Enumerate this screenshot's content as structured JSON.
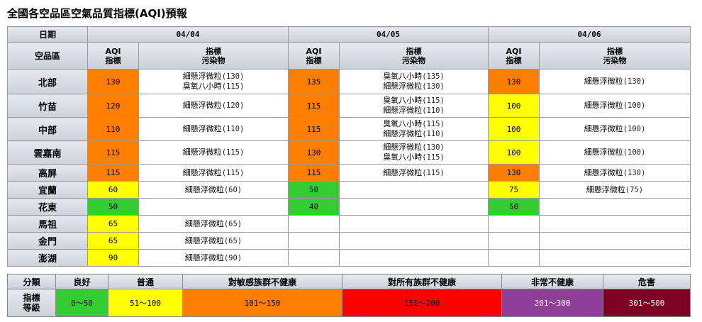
{
  "title": "全國各空品區空氣品質指標(AQI)預報",
  "header": {
    "date_label": "日期",
    "region_label": "空品區",
    "aqi_label_1": "AQI",
    "aqi_label_2": "指標",
    "pol_label_1": "指標",
    "pol_label_2": "污染物",
    "dates": [
      "04/04",
      "04/05",
      "04/06"
    ]
  },
  "colors": {
    "good": "#33cc33",
    "moderate": "#ffff00",
    "sensitive": "#ff7e00",
    "unhealthy": "#ff0000",
    "very_unhealthy": "#8f3f97",
    "hazardous": "#7e0023"
  },
  "rows": [
    {
      "region": "北部",
      "days": [
        {
          "aqi": "130",
          "level": "sensitive",
          "pol": [
            [
              "細懸浮微粒",
              "(130)"
            ],
            [
              "臭氧八小時",
              "(115)"
            ]
          ]
        },
        {
          "aqi": "135",
          "level": "sensitive",
          "pol": [
            [
              "臭氧八小時",
              "(135)"
            ],
            [
              "細懸浮微粒",
              "(130)"
            ]
          ]
        },
        {
          "aqi": "130",
          "level": "sensitive",
          "pol": [
            [
              "細懸浮微粒",
              "(130)"
            ]
          ]
        }
      ]
    },
    {
      "region": "竹苗",
      "days": [
        {
          "aqi": "120",
          "level": "sensitive",
          "pol": [
            [
              "細懸浮微粒",
              "(120)"
            ]
          ]
        },
        {
          "aqi": "115",
          "level": "sensitive",
          "pol": [
            [
              "臭氧八小時",
              "(115)"
            ],
            [
              "細懸浮微粒",
              "(110)"
            ]
          ]
        },
        {
          "aqi": "100",
          "level": "moderate",
          "pol": [
            [
              "細懸浮微粒",
              "(100)"
            ]
          ]
        }
      ]
    },
    {
      "region": "中部",
      "days": [
        {
          "aqi": "110",
          "level": "sensitive",
          "pol": [
            [
              "細懸浮微粒",
              "(110)"
            ]
          ]
        },
        {
          "aqi": "115",
          "level": "sensitive",
          "pol": [
            [
              "臭氧八小時",
              "(115)"
            ],
            [
              "細懸浮微粒",
              "(110)"
            ]
          ]
        },
        {
          "aqi": "100",
          "level": "moderate",
          "pol": [
            [
              "細懸浮微粒",
              "(100)"
            ]
          ]
        }
      ]
    },
    {
      "region": "雲嘉南",
      "days": [
        {
          "aqi": "115",
          "level": "sensitive",
          "pol": [
            [
              "細懸浮微粒",
              "(115)"
            ]
          ]
        },
        {
          "aqi": "130",
          "level": "sensitive",
          "pol": [
            [
              "細懸浮微粒",
              "(130)"
            ],
            [
              "臭氧八小時",
              "(115)"
            ]
          ]
        },
        {
          "aqi": "100",
          "level": "moderate",
          "pol": [
            [
              "細懸浮微粒",
              "(100)"
            ]
          ]
        }
      ]
    },
    {
      "region": "高屏",
      "days": [
        {
          "aqi": "115",
          "level": "sensitive",
          "pol": [
            [
              "細懸浮微粒",
              "(115)"
            ]
          ]
        },
        {
          "aqi": "115",
          "level": "sensitive",
          "pol": [
            [
              "細懸浮微粒",
              "(115)"
            ]
          ]
        },
        {
          "aqi": "130",
          "level": "sensitive",
          "pol": [
            [
              "細懸浮微粒",
              "(130)"
            ]
          ]
        }
      ]
    },
    {
      "region": "宜蘭",
      "days": [
        {
          "aqi": "60",
          "level": "moderate",
          "pol": [
            [
              "細懸浮微粒",
              "(60)"
            ]
          ]
        },
        {
          "aqi": "50",
          "level": "good",
          "pol": []
        },
        {
          "aqi": "75",
          "level": "moderate",
          "pol": [
            [
              "細懸浮微粒",
              "(75)"
            ]
          ]
        }
      ]
    },
    {
      "region": "花東",
      "days": [
        {
          "aqi": "50",
          "level": "good",
          "pol": []
        },
        {
          "aqi": "40",
          "level": "good",
          "pol": []
        },
        {
          "aqi": "50",
          "level": "good",
          "pol": []
        }
      ]
    },
    {
      "region": "馬祖",
      "days": [
        {
          "aqi": "65",
          "level": "moderate",
          "pol": [
            [
              "細懸浮微粒",
              "(65)"
            ]
          ]
        },
        {
          "aqi": "",
          "level": "",
          "pol": []
        },
        {
          "aqi": "",
          "level": "",
          "pol": []
        }
      ]
    },
    {
      "region": "金門",
      "days": [
        {
          "aqi": "65",
          "level": "moderate",
          "pol": [
            [
              "細懸浮微粒",
              "(65)"
            ]
          ]
        },
        {
          "aqi": "",
          "level": "",
          "pol": []
        },
        {
          "aqi": "",
          "level": "",
          "pol": []
        }
      ]
    },
    {
      "region": "澎湖",
      "days": [
        {
          "aqi": "90",
          "level": "moderate",
          "pol": [
            [
              "細懸浮微粒",
              "(90)"
            ]
          ]
        },
        {
          "aqi": "",
          "level": "",
          "pol": []
        },
        {
          "aqi": "",
          "level": "",
          "pol": []
        }
      ]
    }
  ],
  "legend": {
    "category_label": "分類",
    "index_label_1": "指標",
    "index_label_2": "等級",
    "items": [
      {
        "name": "良好",
        "range": "0～50",
        "level": "good",
        "text_color": "#000000"
      },
      {
        "name": "普通",
        "range": "51～100",
        "level": "moderate",
        "text_color": "#000000"
      },
      {
        "name": "對敏感族群不健康",
        "range": "101～150",
        "level": "sensitive",
        "text_color": "#000000"
      },
      {
        "name": "對所有族群不健康",
        "range": "151～200",
        "level": "unhealthy",
        "text_color": "#000000"
      },
      {
        "name": "非常不健康",
        "range": "201～300",
        "level": "very_unhealthy",
        "text_color": "#ffffff"
      },
      {
        "name": "危害",
        "range": "301～500",
        "level": "hazardous",
        "text_color": "#ffffff"
      }
    ]
  }
}
